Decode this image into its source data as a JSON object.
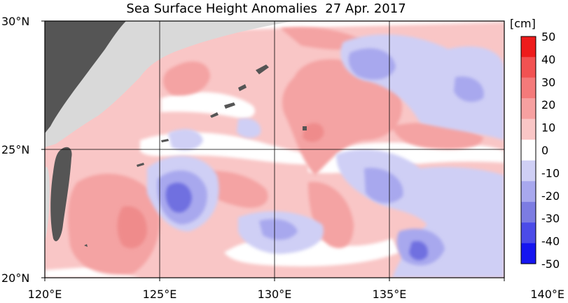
{
  "title": "Sea Surface Height Anomalies  27 Apr. 2017",
  "lon_ticks": [
    {
      "value": 120,
      "label": "120°E"
    },
    {
      "value": 125,
      "label": "125°E"
    },
    {
      "value": 130,
      "label": "130°E"
    },
    {
      "value": 135,
      "label": "135°E"
    },
    {
      "value": 140,
      "label": "140°E"
    }
  ],
  "lat_ticks": [
    {
      "value": 30,
      "label": "30°N"
    },
    {
      "value": 25,
      "label": "25°N"
    },
    {
      "value": 20,
      "label": "20°N"
    }
  ],
  "colorbar": {
    "unit": "[cm]",
    "ticks": [
      "50",
      "40",
      "30",
      "20",
      "10",
      "0",
      "-10",
      "-20",
      "-30",
      "-40",
      "-50"
    ],
    "colors": [
      "#ee1c1c",
      "#f25252",
      "#f47a7a",
      "#f6a0a0",
      "#f9c6c6",
      "#ffffff",
      "#cfcff5",
      "#a8a8ee",
      "#7c7ce2",
      "#4b4be8",
      "#1515f0"
    ]
  },
  "colors": {
    "land": "#d9d9d9",
    "land_dark": "#555555",
    "positive_light": "#f9c6c6",
    "positive_mid": "#f4a3a3",
    "negative_light": "#cfcff5",
    "negative_mid": "#a8a8ee",
    "negative_strong": "#6f6fe0"
  }
}
